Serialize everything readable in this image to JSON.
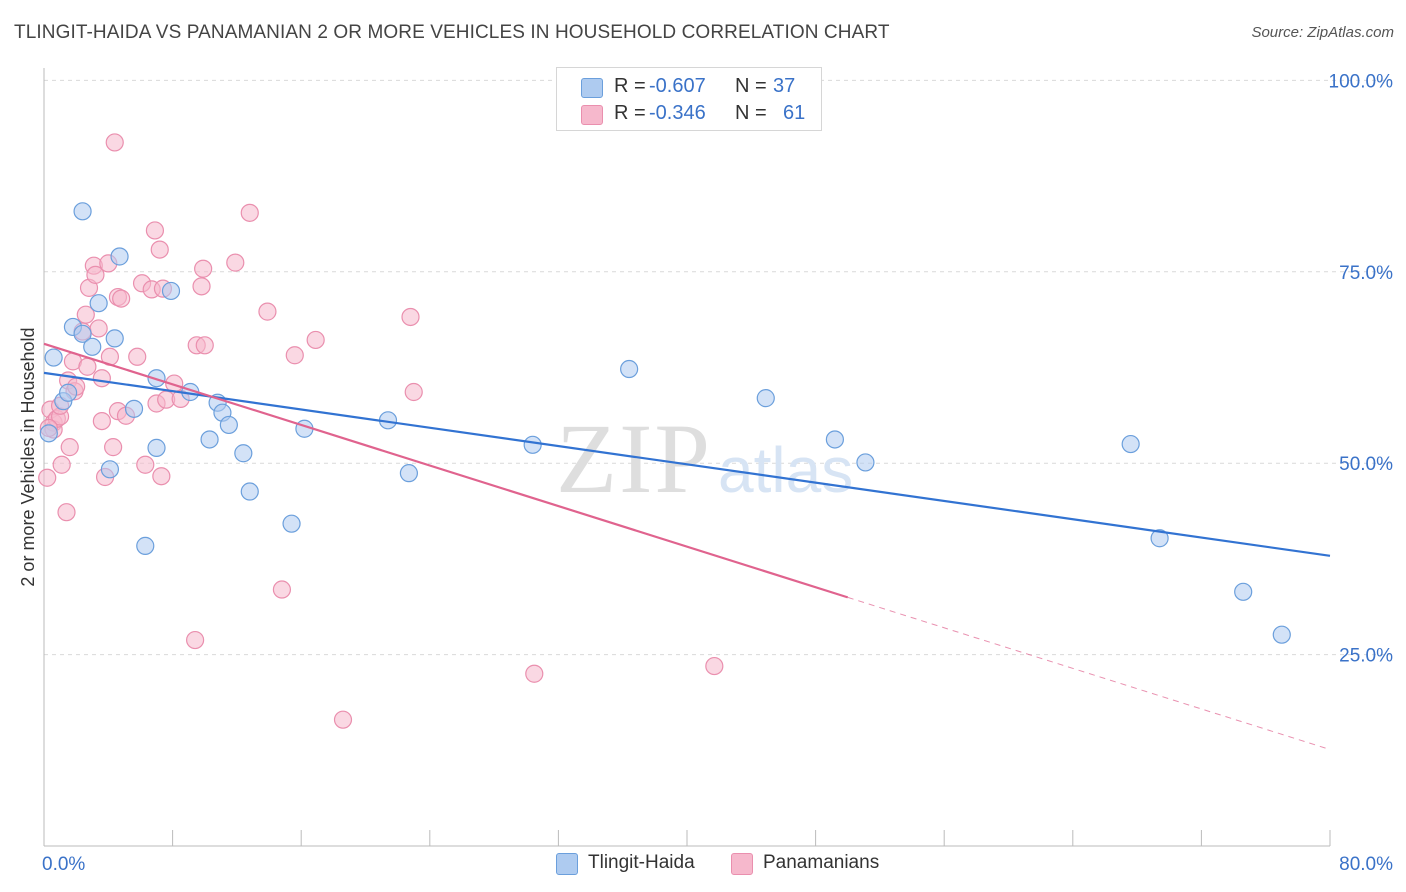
{
  "header": {
    "title": "TLINGIT-HAIDA VS PANAMANIAN 2 OR MORE VEHICLES IN HOUSEHOLD CORRELATION CHART",
    "source": "Source: ZipAtlas.com"
  },
  "watermark": {
    "zip": "ZIP",
    "atlas": "atlas"
  },
  "legend_top": {
    "rows": [
      {
        "r_label": "R =",
        "r_value": "-0.607",
        "n_label": "N =",
        "n_value": "37"
      },
      {
        "r_label": "R =",
        "r_value": "-0.346",
        "n_label": "N =",
        "n_value": "61"
      }
    ]
  },
  "legend_bottom": {
    "items": [
      "Tlingit-Haida",
      "Panamanians"
    ]
  },
  "colors": {
    "blue_fill": "#aecbf0",
    "blue_stroke": "#6b9fdc",
    "blue_line": "#3273d2",
    "pink_fill": "#f6b8cc",
    "pink_stroke": "#ea8fae",
    "pink_line": "#e0638e",
    "tick_label": "#3a72c8",
    "grid": "#d9d9d9",
    "axis": "#bbbbbb"
  },
  "chart_data": {
    "type": "scatter",
    "title": "TLINGIT-HAIDA VS PANAMANIAN 2 OR MORE VEHICLES IN HOUSEHOLD CORRELATION CHART",
    "xlabel": "",
    "ylabel": "2 or more Vehicles in Household",
    "xlim": [
      0,
      80
    ],
    "ylim": [
      0,
      104
    ],
    "x_tick_labels": [
      "0.0%",
      "80.0%"
    ],
    "y_ticks": [
      25,
      50,
      75,
      100
    ],
    "y_tick_labels": [
      "25.0%",
      "50.0%",
      "75.0%",
      "100.0%"
    ],
    "grid": "horizontal dashed",
    "legend_placement": "top-center and bottom-center",
    "series": [
      {
        "name": "Tlingit-Haida",
        "color": "blue",
        "r": -0.607,
        "n": 37,
        "trend": {
          "x": [
            0,
            80
          ],
          "y": [
            61.8,
            37.9
          ],
          "dashed_from": null
        },
        "points": [
          [
            0.3,
            53.9
          ],
          [
            0.6,
            63.8
          ],
          [
            1.2,
            58.1
          ],
          [
            1.5,
            59.2
          ],
          [
            1.8,
            67.8
          ],
          [
            2.4,
            66.9
          ],
          [
            2.4,
            82.9
          ],
          [
            3.0,
            65.2
          ],
          [
            3.4,
            70.9
          ],
          [
            4.4,
            66.3
          ],
          [
            4.7,
            77.0
          ],
          [
            4.1,
            49.2
          ],
          [
            5.6,
            57.1
          ],
          [
            6.3,
            39.2
          ],
          [
            7.0,
            61.1
          ],
          [
            7.0,
            52.0
          ],
          [
            7.9,
            72.5
          ],
          [
            9.1,
            59.3
          ],
          [
            10.3,
            53.1
          ],
          [
            10.8,
            57.9
          ],
          [
            11.1,
            56.6
          ],
          [
            11.5,
            55.0
          ],
          [
            12.4,
            51.3
          ],
          [
            12.8,
            46.3
          ],
          [
            15.4,
            42.1
          ],
          [
            16.2,
            54.5
          ],
          [
            21.4,
            55.6
          ],
          [
            22.7,
            48.7
          ],
          [
            30.4,
            52.4
          ],
          [
            36.4,
            62.3
          ],
          [
            44.9,
            58.5
          ],
          [
            49.2,
            53.1
          ],
          [
            51.1,
            50.1
          ],
          [
            67.6,
            52.5
          ],
          [
            69.4,
            40.2
          ],
          [
            74.6,
            33.2
          ],
          [
            77.0,
            27.6
          ]
        ]
      },
      {
        "name": "Panamanians",
        "color": "pink",
        "r": -0.346,
        "n": 61,
        "trend": {
          "x": [
            0,
            80
          ],
          "y": [
            65.6,
            12.6
          ],
          "dashed_from": 50
        },
        "points": [
          [
            0.2,
            48.1
          ],
          [
            0.4,
            57.0
          ],
          [
            0.6,
            55.3
          ],
          [
            0.6,
            54.4
          ],
          [
            0.8,
            55.8
          ],
          [
            1.0,
            56.1
          ],
          [
            1.0,
            57.5
          ],
          [
            1.1,
            49.8
          ],
          [
            1.4,
            43.6
          ],
          [
            1.5,
            60.8
          ],
          [
            1.6,
            52.1
          ],
          [
            1.8,
            63.3
          ],
          [
            1.9,
            59.4
          ],
          [
            2.0,
            60.0
          ],
          [
            2.4,
            67.2
          ],
          [
            2.6,
            69.4
          ],
          [
            2.7,
            62.6
          ],
          [
            2.8,
            72.9
          ],
          [
            3.1,
            75.8
          ],
          [
            3.2,
            74.6
          ],
          [
            3.4,
            67.6
          ],
          [
            3.6,
            61.1
          ],
          [
            3.6,
            55.5
          ],
          [
            3.8,
            48.2
          ],
          [
            4.0,
            76.1
          ],
          [
            4.1,
            63.9
          ],
          [
            4.3,
            52.1
          ],
          [
            4.6,
            56.8
          ],
          [
            4.6,
            71.7
          ],
          [
            4.8,
            71.5
          ],
          [
            4.4,
            91.9
          ],
          [
            5.8,
            63.9
          ],
          [
            6.1,
            73.5
          ],
          [
            6.3,
            49.8
          ],
          [
            6.7,
            72.7
          ],
          [
            6.9,
            80.4
          ],
          [
            7.0,
            57.8
          ],
          [
            7.3,
            48.3
          ],
          [
            7.4,
            72.8
          ],
          [
            7.6,
            58.3
          ],
          [
            7.2,
            77.9
          ],
          [
            8.1,
            60.4
          ],
          [
            8.5,
            58.4
          ],
          [
            9.4,
            26.9
          ],
          [
            9.5,
            65.4
          ],
          [
            9.8,
            73.1
          ],
          [
            9.9,
            75.4
          ],
          [
            10.0,
            65.4
          ],
          [
            11.9,
            76.2
          ],
          [
            12.8,
            82.7
          ],
          [
            13.9,
            69.8
          ],
          [
            14.8,
            33.5
          ],
          [
            15.6,
            64.1
          ],
          [
            16.9,
            66.1
          ],
          [
            18.6,
            16.5
          ],
          [
            22.8,
            69.1
          ],
          [
            23.0,
            59.3
          ],
          [
            30.5,
            22.5
          ],
          [
            41.7,
            23.5
          ],
          [
            0.3,
            54.6
          ],
          [
            5.1,
            56.2
          ]
        ]
      }
    ]
  }
}
